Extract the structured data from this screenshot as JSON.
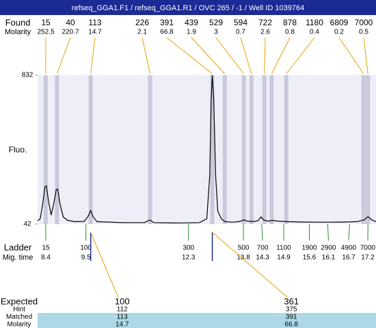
{
  "title": "refseq_GGA1.F1 / refseq_GGA1.R1 / OVC 265 / -1 / Well ID 1039764",
  "chart_data": {
    "type": "line",
    "y_label": "Fluo.",
    "color": "#000000",
    "x": [
      8.18,
      8.25,
      8.32,
      8.38,
      8.42,
      8.48,
      8.55,
      8.62,
      8.69,
      8.73,
      8.79,
      8.88,
      9.0,
      9.2,
      9.45,
      9.55,
      9.63,
      9.7,
      9.8,
      10.5,
      11.1,
      11.2,
      11.25,
      11.35,
      12.0,
      12.6,
      12.8,
      12.88,
      12.92,
      12.95,
      12.99,
      13.04,
      13.1,
      13.2,
      13.3,
      13.5,
      13.7,
      13.82,
      13.9,
      14.1,
      14.2,
      14.28,
      14.35,
      14.45,
      14.6,
      14.75,
      15.0,
      15.5,
      16.0,
      16.5,
      16.9,
      17.1,
      17.2,
      17.3,
      17.42
    ],
    "values": [
      60,
      70,
      150,
      240,
      245,
      160,
      90,
      150,
      225,
      228,
      150,
      80,
      62,
      55,
      56,
      80,
      114,
      80,
      55,
      50,
      50,
      60,
      64,
      50,
      48,
      50,
      70,
      300,
      700,
      832,
      700,
      300,
      110,
      70,
      55,
      52,
      56,
      65,
      58,
      56,
      60,
      80,
      65,
      58,
      62,
      58,
      55,
      53,
      52,
      53,
      55,
      65,
      82,
      65,
      55
    ],
    "xlim": [
      8.18,
      17.42
    ],
    "ylim": [
      42,
      832
    ],
    "yticks": [
      42,
      832
    ]
  },
  "found": {
    "label": "Found",
    "molarity_label": "Molarity",
    "sizes": [
      15,
      40,
      113,
      226,
      391,
      439,
      529,
      594,
      722,
      878,
      1180,
      6809,
      7000
    ],
    "molarity": [
      252.5,
      220.7,
      14.7,
      2.1,
      66.8,
      1.9,
      3,
      0.7,
      2.6,
      0.8,
      0.4,
      0.2,
      0.5
    ],
    "times": [
      8.4,
      8.71,
      9.63,
      11.25,
      12.95,
      13.29,
      13.81,
      14.02,
      14.37,
      14.57,
      14.97,
      17.08,
      17.2
    ]
  },
  "ladder": {
    "label": "Ladder",
    "time_label": "Mig. time",
    "sizes": [
      15,
      100,
      300,
      500,
      700,
      1100,
      1900,
      2900,
      4900,
      7000
    ],
    "times": [
      8.4,
      9.5,
      12.3,
      13.8,
      14.3,
      14.9,
      15.6,
      16.1,
      16.7,
      17.2
    ]
  },
  "expected": {
    "label": "Expected",
    "hint_label": "Hint",
    "matched_label": "Matched",
    "molarity_label": "Molarity",
    "expected": [
      100,
      361
    ],
    "hint": [
      112,
      375
    ],
    "matched": [
      113,
      391
    ],
    "molarity": [
      14.7,
      66.8
    ]
  }
}
